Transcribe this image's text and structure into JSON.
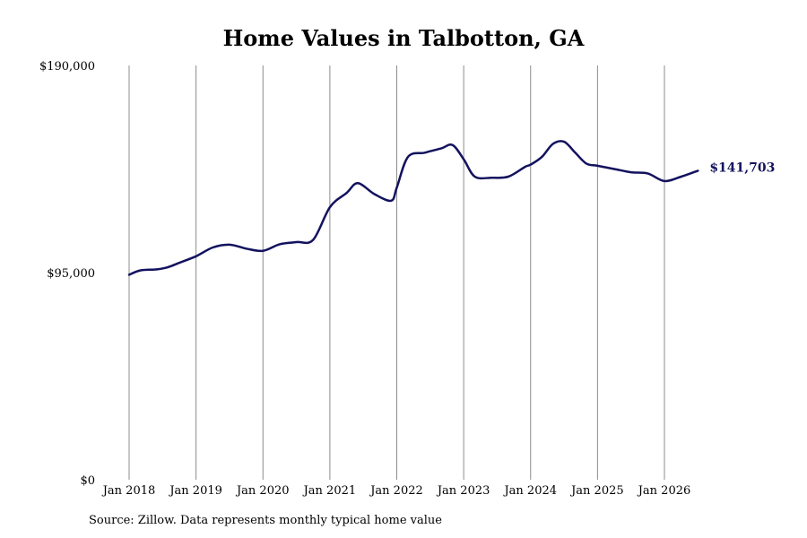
{
  "colors": {
    "line": "#13125e",
    "gridline": "#8c8c8c",
    "text": "#000000"
  },
  "footer": {
    "source": "Source: Zillow. Data represents monthly typical home value"
  },
  "chart_data": {
    "type": "line",
    "title": "Home Values in Talbotton, GA",
    "xlabel": "",
    "ylabel": "",
    "ylim": [
      0,
      190000
    ],
    "yticks": [
      {
        "value": 0,
        "label": "$0"
      },
      {
        "value": 95000,
        "label": "$95,000"
      },
      {
        "value": 190000,
        "label": "$190,000"
      }
    ],
    "xticks": [
      {
        "value": "2018-01",
        "label": "Jan 2018"
      },
      {
        "value": "2019-01",
        "label": "Jan 2019"
      },
      {
        "value": "2020-01",
        "label": "Jan 2020"
      },
      {
        "value": "2021-01",
        "label": "Jan 2021"
      },
      {
        "value": "2022-01",
        "label": "Jan 2022"
      },
      {
        "value": "2023-01",
        "label": "Jan 2023"
      },
      {
        "value": "2024-01",
        "label": "Jan 2024"
      },
      {
        "value": "2025-01",
        "label": "Jan 2025"
      },
      {
        "value": "2026-01",
        "label": "Jan 2026"
      }
    ],
    "grid": "vertical",
    "legend": "none",
    "end_label": "$141,703",
    "series": [
      {
        "x": [
          "2018-01",
          "2018-03",
          "2018-06",
          "2018-08",
          "2018-10",
          "2019-01",
          "2019-04",
          "2019-07",
          "2019-10",
          "2020-01",
          "2020-04",
          "2020-07",
          "2020-10",
          "2021-01",
          "2021-04",
          "2021-06",
          "2021-09",
          "2021-12",
          "2022-01",
          "2022-03",
          "2022-06",
          "2022-09",
          "2022-11",
          "2023-01",
          "2023-03",
          "2023-06",
          "2023-09",
          "2023-12",
          "2024-01",
          "2024-03",
          "2024-05",
          "2024-07",
          "2024-09",
          "2024-11",
          "2025-01",
          "2025-04",
          "2025-07",
          "2025-10",
          "2026-01",
          "2026-04",
          "2026-07"
        ],
        "values": [
          94000,
          96000,
          96500,
          97500,
          99500,
          102500,
          106500,
          107800,
          106000,
          105000,
          108000,
          109000,
          110000,
          125000,
          131500,
          136000,
          131000,
          128000,
          134000,
          148000,
          150000,
          152000,
          153500,
          147000,
          139000,
          138500,
          139000,
          143500,
          144500,
          148000,
          154000,
          155000,
          150000,
          145000,
          144000,
          142500,
          141000,
          140500,
          137000,
          139000,
          141703
        ]
      }
    ]
  }
}
